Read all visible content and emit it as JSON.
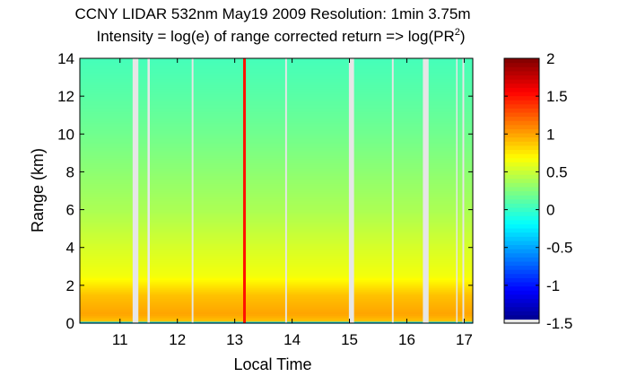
{
  "chart_data": {
    "type": "heatmap",
    "title_line1": "CCNY LIDAR 532nm May19 2009 Resolution: 1min 3.75m",
    "title_line2_prefix": "Intensity = log(e) of range corrected return => log(PR",
    "title_line2_superscript": "2",
    "title_line2_suffix": ")",
    "xlabel": "Local Time",
    "ylabel": "Range (km)",
    "xlim": [
      10.3,
      17.15
    ],
    "ylim": [
      0,
      14
    ],
    "xticks": [
      11,
      12,
      13,
      14,
      15,
      16,
      17
    ],
    "xtick_labels": [
      "11",
      "12",
      "13",
      "14",
      "15",
      "16",
      "17"
    ],
    "yticks": [
      0,
      2,
      4,
      6,
      8,
      10,
      12,
      14
    ],
    "ytick_labels": [
      "0",
      "2",
      "4",
      "6",
      "8",
      "10",
      "12",
      "14"
    ],
    "colorbar": {
      "colormap": "jet",
      "clim": [
        -1.5,
        2
      ],
      "ticks": [
        -1.5,
        -1,
        -0.5,
        0,
        0.5,
        1,
        1.5,
        2
      ],
      "tick_labels": [
        "-1.5",
        "-1",
        "-0.5",
        "0",
        "0.5",
        "1",
        "1.5",
        "2"
      ],
      "below_min_color": "#e6e6e6"
    },
    "intensity_profile_vs_range": [
      {
        "range_km": 0.05,
        "value": -0.3
      },
      {
        "range_km": 0.15,
        "value": 0.9
      },
      {
        "range_km": 0.5,
        "value": 1.0
      },
      {
        "range_km": 1.5,
        "value": 0.9
      },
      {
        "range_km": 2.5,
        "value": 0.65
      },
      {
        "range_km": 4,
        "value": 0.55
      },
      {
        "range_km": 6,
        "value": 0.4
      },
      {
        "range_km": 8,
        "value": 0.3
      },
      {
        "range_km": 10,
        "value": 0.2
      },
      {
        "range_km": 12,
        "value": 0.12
      },
      {
        "range_km": 14,
        "value": 0.05
      }
    ],
    "data_gaps_local_time": [
      {
        "start": 11.22,
        "end": 11.32
      },
      {
        "start": 11.48,
        "end": 11.52
      },
      {
        "start": 12.25,
        "end": 12.28
      },
      {
        "start": 13.88,
        "end": 13.91
      },
      {
        "start": 14.99,
        "end": 15.08
      },
      {
        "start": 15.74,
        "end": 15.77
      },
      {
        "start": 16.28,
        "end": 16.38
      },
      {
        "start": 16.86,
        "end": 16.88
      },
      {
        "start": 16.97,
        "end": 17.0
      }
    ],
    "high_intensity_streak_local_time": 13.17,
    "high_intensity_streak_value": 1.5
  }
}
